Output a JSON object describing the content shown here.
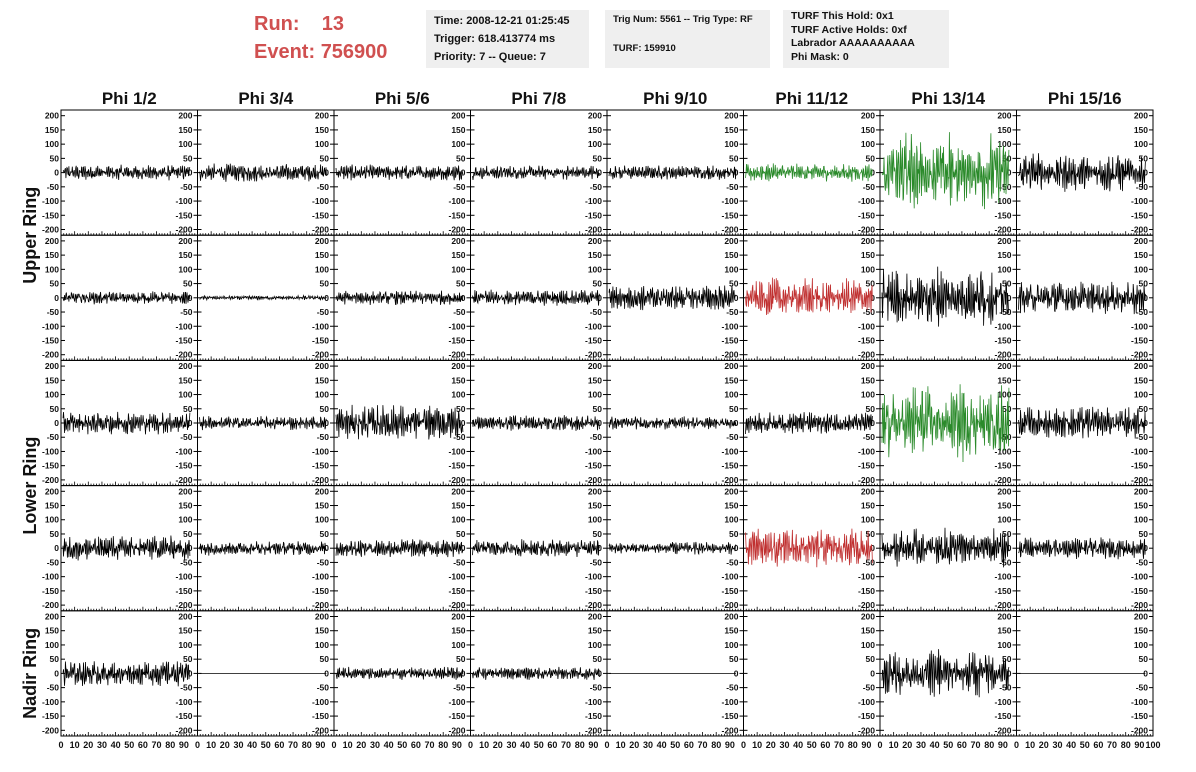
{
  "header": {
    "run_label": "Run:",
    "run_value": "13",
    "event_label": "Event:",
    "event_value": "756900",
    "box1": [
      "Time: 2008-12-21 01:25:45",
      "Trigger: 618.413774 ms",
      "Priority: 7 -- Queue: 7"
    ],
    "box2": [
      "Trig Num: 5561 -- Trig Type: RF",
      "TURF: 159910"
    ],
    "box3": [
      "TURF This Hold: 0x1",
      "TURF Active Holds: 0xf",
      "Labrador AAAAAAAAAA",
      "Phi Mask: 0"
    ]
  },
  "colors": {
    "black": "#000000",
    "green": "#2a8a2a",
    "red": "#c03030",
    "accent": "#d05050"
  },
  "chart_data": {
    "type": "line",
    "title": "",
    "columns": [
      "Phi 1/2",
      "Phi 3/4",
      "Phi 5/6",
      "Phi 7/8",
      "Phi 9/10",
      "Phi 11/12",
      "Phi 13/14",
      "Phi 15/16"
    ],
    "row_groups": [
      {
        "label": "Upper Ring",
        "rows": [
          0,
          1
        ]
      },
      {
        "label": "Lower Ring",
        "rows": [
          2,
          3
        ]
      },
      {
        "label": "Nadir Ring",
        "rows": [
          4
        ]
      }
    ],
    "ylim": [
      -220,
      220
    ],
    "yticks": [
      -200,
      -150,
      -100,
      -50,
      0,
      50,
      100,
      150,
      200
    ],
    "ytick_labels": [
      "-200",
      "-150",
      "-100",
      "-50",
      "0",
      "50",
      "100",
      "150",
      "200"
    ],
    "xlim": [
      0,
      100
    ],
    "xticks": [
      0,
      10,
      20,
      30,
      40,
      50,
      60,
      70,
      80,
      90,
      100
    ],
    "xtick_labels": [
      "0",
      "10",
      "20",
      "30",
      "40",
      "50",
      "60",
      "70",
      "80",
      "90",
      "100"
    ],
    "series_amplitude": [
      [
        22,
        25,
        22,
        20,
        20,
        25,
        115,
        60
      ],
      [
        18,
        6,
        20,
        22,
        35,
        60,
        90,
        45
      ],
      [
        32,
        20,
        50,
        22,
        18,
        30,
        115,
        45
      ],
      [
        35,
        20,
        25,
        25,
        18,
        55,
        60,
        30
      ],
      [
        35,
        0,
        18,
        18,
        0,
        null,
        70,
        0
      ]
    ],
    "series_color": [
      [
        "black",
        "black",
        "black",
        "black",
        "black",
        "green",
        "green",
        "black"
      ],
      [
        "black",
        "black",
        "black",
        "black",
        "black",
        "red",
        "black",
        "black"
      ],
      [
        "black",
        "black",
        "black",
        "black",
        "black",
        "black",
        "green",
        "black"
      ],
      [
        "black",
        "black",
        "black",
        "black",
        "black",
        "red",
        "black",
        "black"
      ],
      [
        "black",
        "black",
        "black",
        "black",
        "black",
        "none",
        "black",
        "black"
      ]
    ]
  }
}
